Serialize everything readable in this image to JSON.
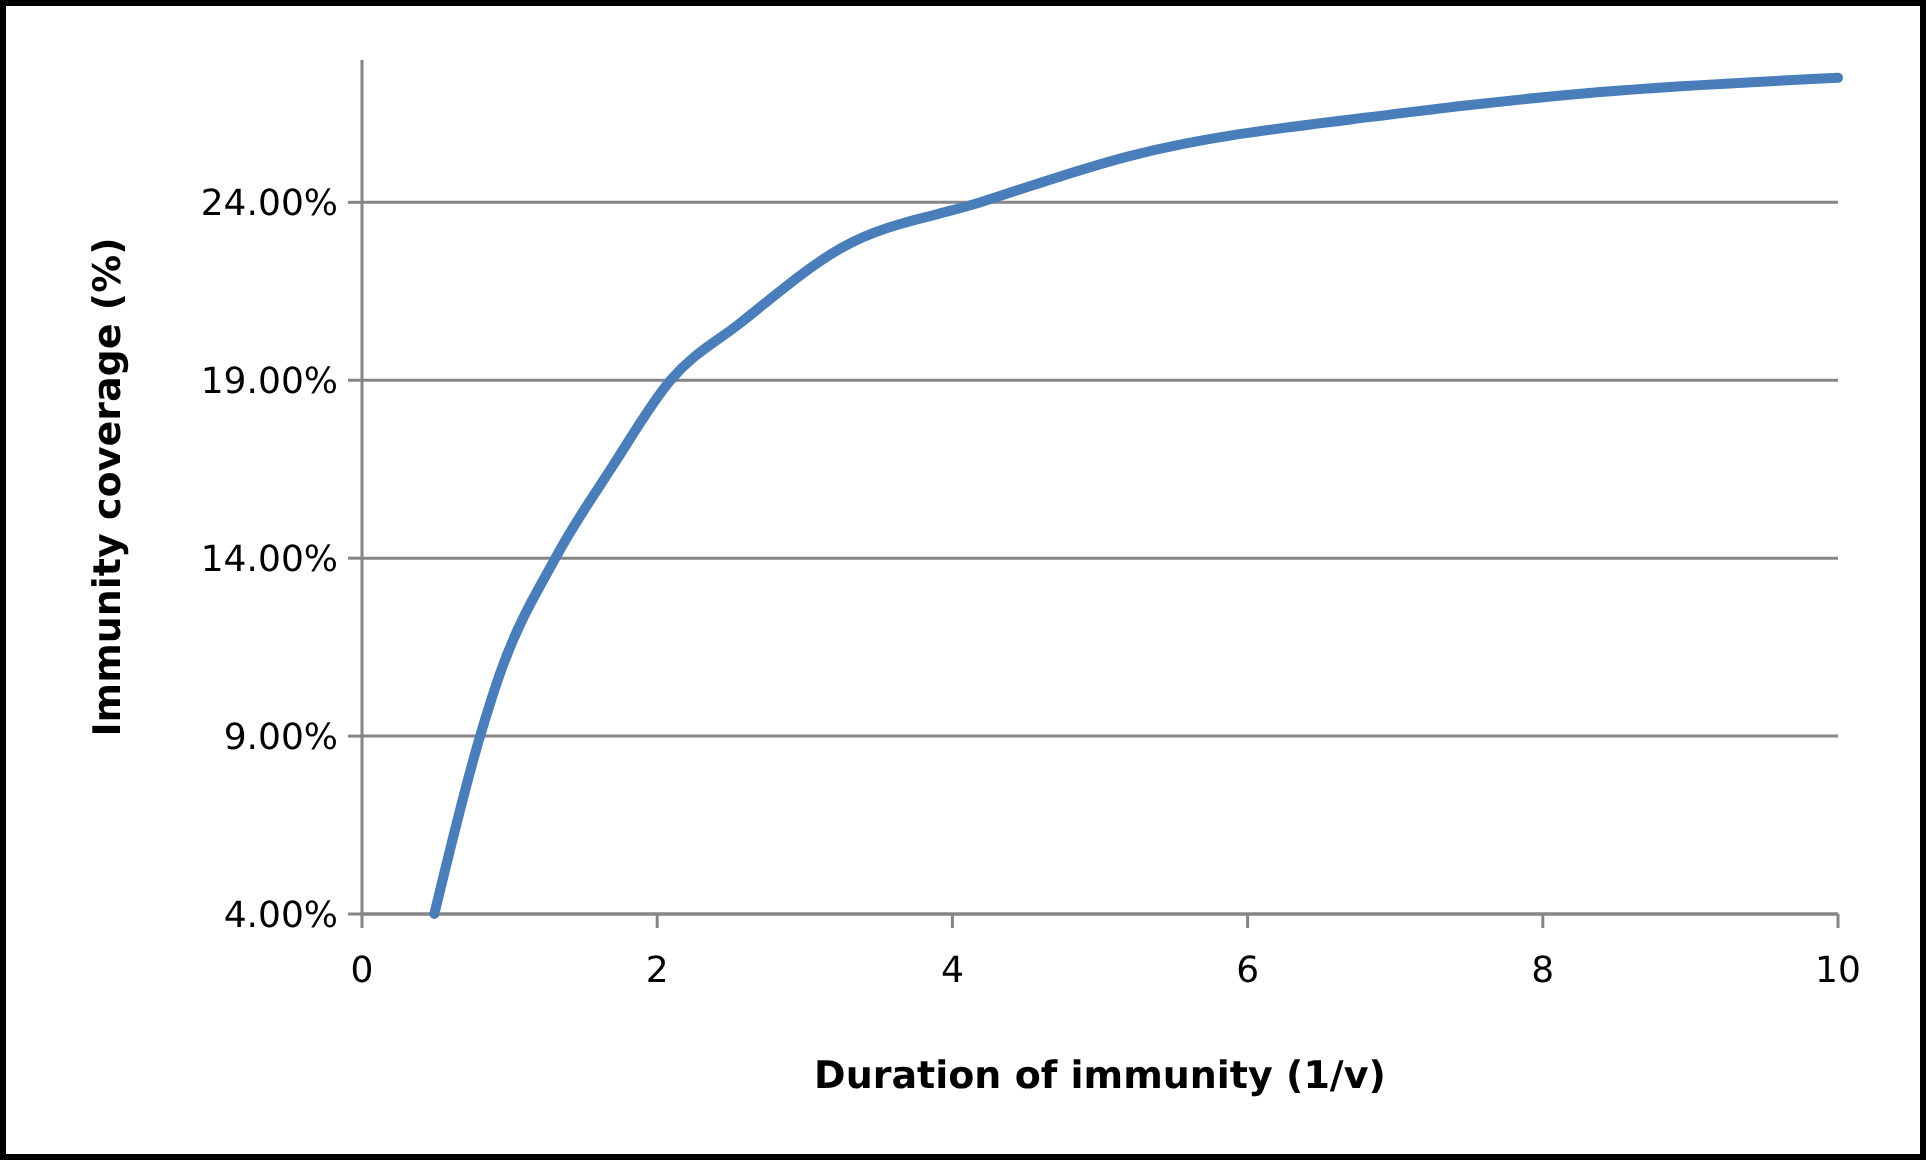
{
  "chart_data": {
    "type": "line",
    "xlabel": "Duration of immunity (1/v)",
    "ylabel": "Immunity coverage (%)",
    "xlim": [
      0,
      10
    ],
    "xticks": [
      0,
      2,
      4,
      6,
      8,
      10
    ],
    "ylim": [
      4,
      28
    ],
    "yticks": [
      {
        "value": 4,
        "label": "4.00%"
      },
      {
        "value": 9,
        "label": "9.00%"
      },
      {
        "value": 14,
        "label": "14.00%"
      },
      {
        "value": 19,
        "label": "19.00%"
      },
      {
        "value": 24,
        "label": "24.00%"
      }
    ],
    "grid": "y",
    "marker": "none",
    "line_style": "solid",
    "series": [
      {
        "color": "#4a7ebb",
        "x": [
          0.49,
          0.8,
          0.93,
          1.31,
          1.7,
          2.09,
          2.56,
          3.24,
          4.19,
          5.2,
          7.03,
          8.39,
          10
        ],
        "values": [
          4,
          9,
          10.7,
          14,
          16.6,
          19,
          20.6,
          22.7,
          24,
          25.3,
          26.5,
          27.1,
          27.5
        ]
      }
    ]
  }
}
